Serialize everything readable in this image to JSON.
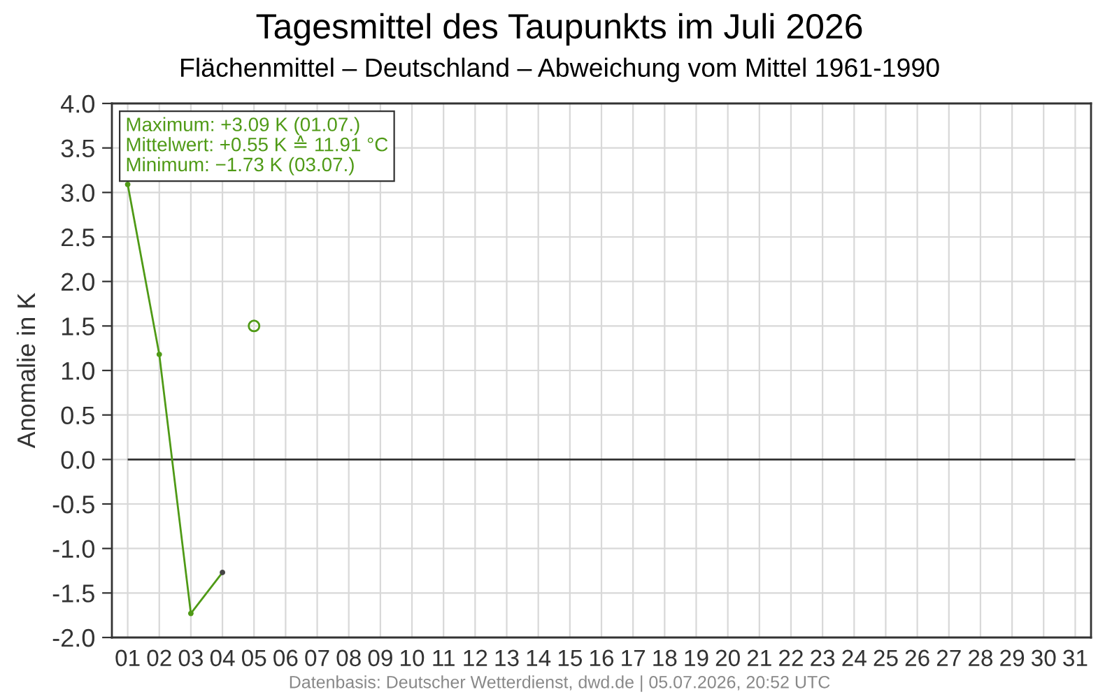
{
  "chart_data": {
    "type": "line",
    "title": "Tagesmittel des Taupunkts im Juli 2026",
    "subtitle": "Flächenmittel – Deutschland – Abweichung vom Mittel 1961-1990",
    "ylabel": "Anomalie in K",
    "categories": [
      "01",
      "02",
      "03",
      "04",
      "05",
      "06",
      "07",
      "08",
      "09",
      "10",
      "11",
      "12",
      "13",
      "14",
      "15",
      "16",
      "17",
      "18",
      "19",
      "20",
      "21",
      "22",
      "23",
      "24",
      "25",
      "26",
      "27",
      "28",
      "29",
      "30",
      "31"
    ],
    "series": [
      {
        "color": "#4f9a16",
        "colors": [
          "#4f9a16",
          "#4f9a16",
          "#4f9a16",
          "#444444",
          null,
          null,
          null,
          null,
          null,
          null,
          null,
          null,
          null,
          null,
          null,
          null,
          null,
          null,
          null,
          null,
          null,
          null,
          null,
          null,
          null,
          null,
          null,
          null,
          null,
          null,
          null
        ],
        "values": [
          3.09,
          1.18,
          -1.73,
          -1.27,
          null,
          null,
          null,
          null,
          null,
          null,
          null,
          null,
          null,
          null,
          null,
          null,
          null,
          null,
          null,
          null,
          null,
          null,
          null,
          null,
          null,
          null,
          null,
          null,
          null,
          null,
          null
        ]
      },
      {
        "type": "scatter",
        "color": "#4f9a16",
        "values": [
          null,
          null,
          null,
          null,
          1.5,
          null,
          null,
          null,
          null,
          null,
          null,
          null,
          null,
          null,
          null,
          null,
          null,
          null,
          null,
          null,
          null,
          null,
          null,
          null,
          null,
          null,
          null,
          null,
          null,
          null,
          null
        ]
      }
    ],
    "ylim": [
      -2,
      4
    ],
    "yticks": [
      {
        "value": -2,
        "label": "-2.0"
      },
      {
        "value": -1.5,
        "label": "-1.5"
      },
      {
        "value": -1,
        "label": "-1.0"
      },
      {
        "value": -0.5,
        "label": "-0.5"
      },
      {
        "value": 0,
        "label": "0.0"
      },
      {
        "value": 0.5,
        "label": "0.5"
      },
      {
        "value": 1,
        "label": "1.0"
      },
      {
        "value": 1.5,
        "label": "1.5"
      },
      {
        "value": 2,
        "label": "2.0"
      },
      {
        "value": 2.5,
        "label": "2.5"
      },
      {
        "value": 3,
        "label": "3.0"
      },
      {
        "value": 3.5,
        "label": "3.5"
      },
      {
        "value": 4,
        "label": "4.0"
      }
    ],
    "ref_lines": [
      {
        "axis": "y",
        "value": 0,
        "color": "#333333"
      }
    ],
    "marker": "circle",
    "grid": true,
    "annotations": [
      "Maximum: +3.09 K (01.07.)",
      "Mittelwert: +0.55 K ≙ 11.91 °C",
      "Minimum: −1.73 K (03.07.)",
      "Datenbasis: Deutscher Wetterdienst, dwd.de | 05.07.2026, 20:52 UTC"
    ]
  }
}
